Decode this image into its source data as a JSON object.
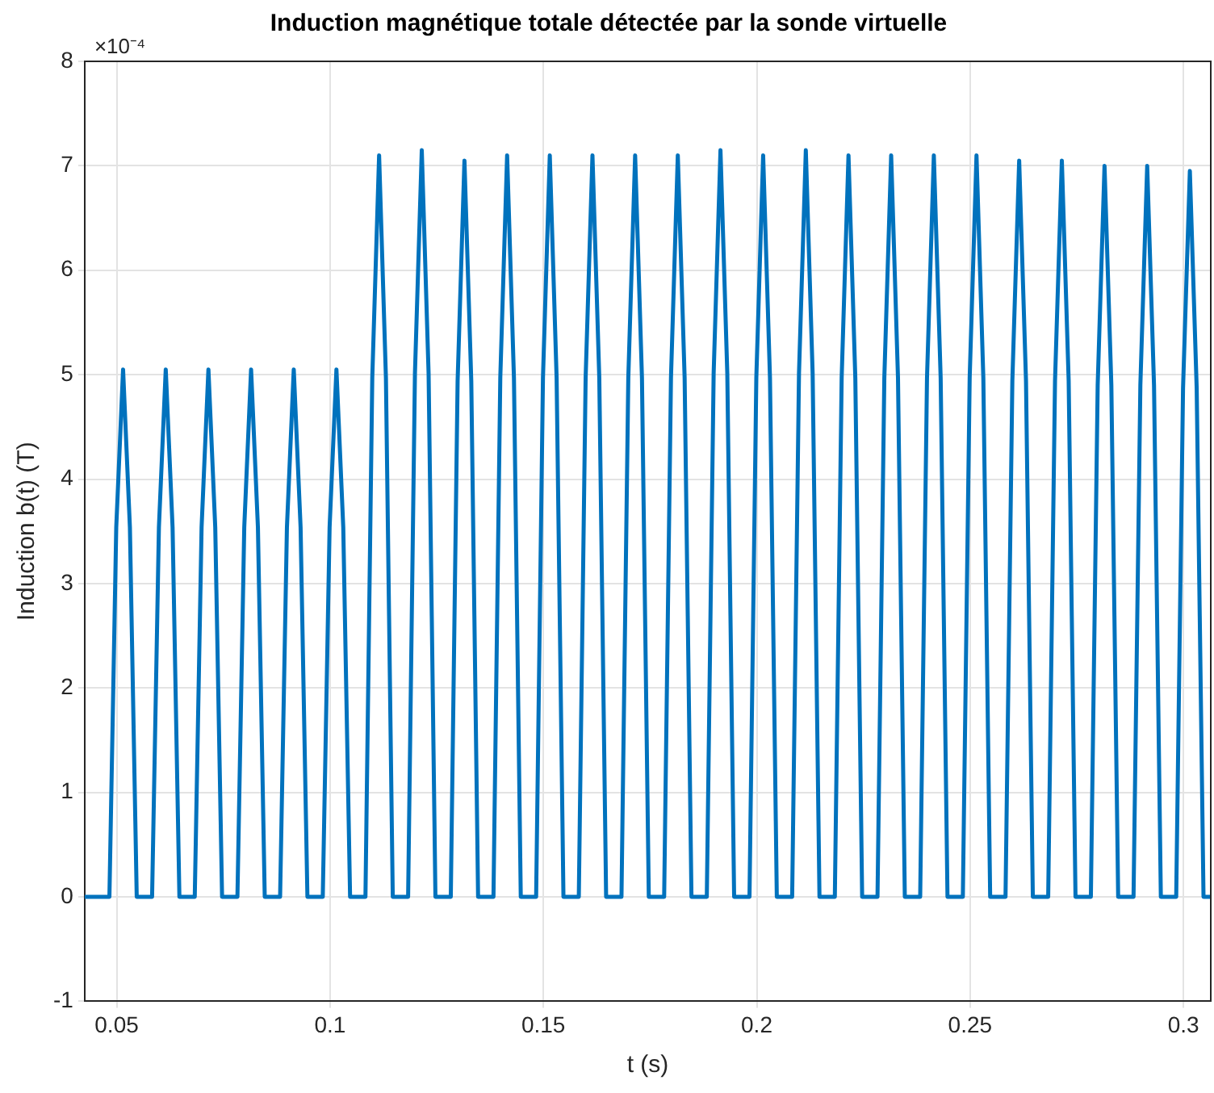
{
  "chart_data": {
    "type": "line",
    "title": "Induction magnétique totale détectée par la sonde virtuelle",
    "xlabel": "t (s)",
    "ylabel": "Induction b(t) (T)",
    "annotations": [
      "×10⁻⁴"
    ],
    "xlim": [
      0.0425,
      0.3064
    ],
    "xticks": [
      0.05,
      0.1,
      0.15,
      0.2,
      0.25,
      0.3
    ],
    "ylim": [
      -1,
      8
    ],
    "yticks": [
      -1,
      0,
      1,
      2,
      3,
      4,
      5,
      6,
      7,
      8
    ],
    "grid": true,
    "legend": false,
    "marker": "none",
    "line_style": "solid",
    "series": [
      {
        "color": "#0072bd",
        "x": [
          0.0425,
          0.0483,
          0.0499,
          0.0515,
          0.0531,
          0.0547,
          0.0583,
          0.0599,
          0.0615,
          0.0631,
          0.0647,
          0.0683,
          0.0699,
          0.0715,
          0.0731,
          0.0747,
          0.0783,
          0.0799,
          0.0815,
          0.0831,
          0.0847,
          0.0883,
          0.0899,
          0.0915,
          0.0931,
          0.0947,
          0.0983,
          0.0999,
          0.1015,
          0.1031,
          0.1047,
          0.1083,
          0.1099,
          0.1115,
          0.1131,
          0.1147,
          0.1183,
          0.1199,
          0.1215,
          0.1231,
          0.1247,
          0.1283,
          0.1299,
          0.1315,
          0.1331,
          0.1347,
          0.1383,
          0.1399,
          0.1415,
          0.1431,
          0.1447,
          0.1483,
          0.1499,
          0.1515,
          0.1531,
          0.1547,
          0.1583,
          0.1599,
          0.1615,
          0.1631,
          0.1647,
          0.1683,
          0.1699,
          0.1715,
          0.1731,
          0.1747,
          0.1783,
          0.1799,
          0.1815,
          0.1831,
          0.1847,
          0.1883,
          0.1899,
          0.1915,
          0.1931,
          0.1947,
          0.1983,
          0.1999,
          0.2015,
          0.2031,
          0.2047,
          0.2083,
          0.2099,
          0.2115,
          0.2131,
          0.2147,
          0.2183,
          0.2199,
          0.2215,
          0.2231,
          0.2247,
          0.2283,
          0.2299,
          0.2315,
          0.2331,
          0.2347,
          0.2383,
          0.2399,
          0.2415,
          0.2431,
          0.2447,
          0.2483,
          0.2499,
          0.2515,
          0.2531,
          0.2547,
          0.2583,
          0.2599,
          0.2615,
          0.2631,
          0.2647,
          0.2683,
          0.2699,
          0.2715,
          0.2731,
          0.2747,
          0.2783,
          0.2799,
          0.2815,
          0.2831,
          0.2847,
          0.2883,
          0.2899,
          0.2915,
          0.2931,
          0.2947,
          0.2983,
          0.2999,
          0.3015,
          0.3031,
          0.3047,
          0.3064
        ],
        "values": [
          0,
          0,
          3.54,
          5.05,
          3.54,
          0,
          0,
          3.54,
          5.05,
          3.54,
          0,
          0,
          3.54,
          5.05,
          3.54,
          0,
          0,
          3.54,
          5.05,
          3.54,
          0,
          0,
          3.54,
          5.05,
          3.54,
          0,
          0,
          3.54,
          5.05,
          3.54,
          0,
          0,
          4.97,
          7.1,
          4.97,
          0,
          0,
          5.01,
          7.15,
          5.01,
          0,
          0,
          4.94,
          7.05,
          4.94,
          0,
          0,
          4.97,
          7.1,
          4.97,
          0,
          0,
          4.97,
          7.1,
          4.97,
          0,
          0,
          4.97,
          7.1,
          4.97,
          0,
          0,
          4.97,
          7.1,
          4.97,
          0,
          0,
          4.97,
          7.1,
          4.97,
          0,
          0,
          5.01,
          7.15,
          5.01,
          0,
          0,
          4.97,
          7.1,
          4.97,
          0,
          0,
          5.01,
          7.15,
          5.01,
          0,
          0,
          4.97,
          7.1,
          4.97,
          0,
          0,
          4.97,
          7.1,
          4.97,
          0,
          0,
          4.97,
          7.1,
          4.97,
          0,
          0,
          4.97,
          7.1,
          4.97,
          0,
          0,
          4.94,
          7.05,
          4.94,
          0,
          0,
          4.94,
          7.05,
          4.94,
          0,
          0,
          4.9,
          7.0,
          4.9,
          0,
          0,
          4.9,
          7.0,
          4.9,
          0,
          0,
          4.87,
          6.95,
          4.87,
          0,
          0
        ]
      }
    ]
  }
}
